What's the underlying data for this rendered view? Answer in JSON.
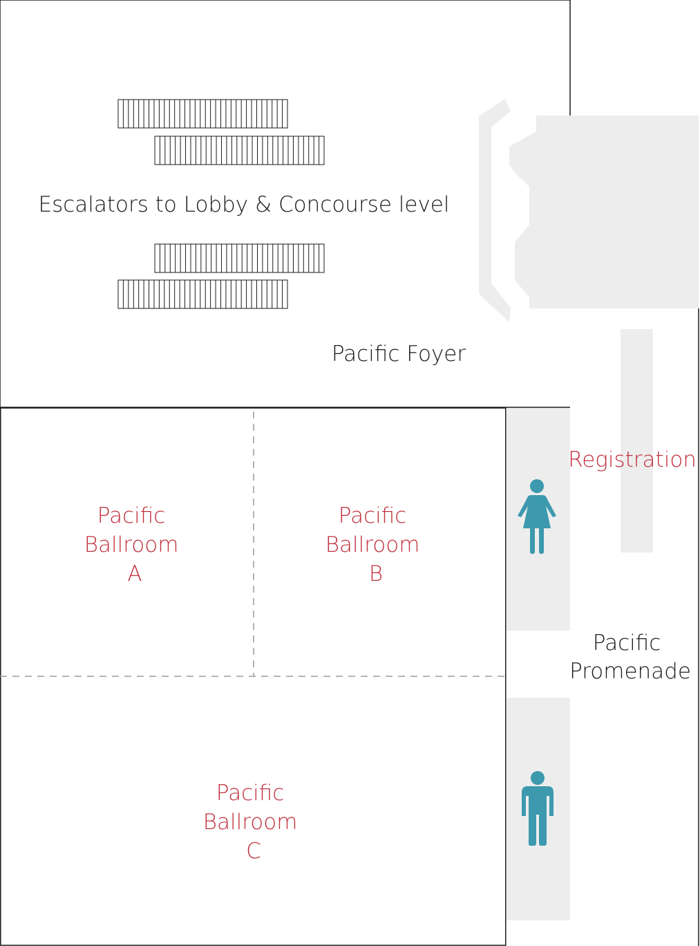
{
  "map": {
    "escalator_label": "Escalators to Lobby & Concourse level",
    "foyer_label": "Pacific Foyer",
    "registration_label": "Registration",
    "promenade_label": [
      "Pacific",
      "Promenade"
    ],
    "ballroom_a_label": [
      "Pacific",
      "Ballroom",
      "A"
    ],
    "ballroom_b_label": [
      "Pacific",
      "Ballroom",
      "B"
    ],
    "ballroom_c_label": [
      "Pacific",
      "Ballroom",
      "C"
    ],
    "icons": {
      "women_restroom": "woman-icon",
      "men_restroom": "man-icon"
    },
    "colors": {
      "room_label": "#c0303d",
      "restroom_icon": "#3d99ae",
      "service_area": "#ededed",
      "wall": "#1a1a1a"
    }
  }
}
